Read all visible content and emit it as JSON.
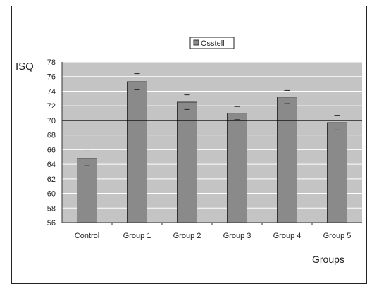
{
  "chart_data": {
    "type": "bar",
    "title": "",
    "xlabel": "Groups",
    "ylabel": "ISQ",
    "ylim": [
      56,
      78
    ],
    "ytick_step": 2,
    "yticks": [
      "56",
      "58",
      "60",
      "62",
      "64",
      "66",
      "68",
      "70",
      "72",
      "74",
      "76",
      "78"
    ],
    "reference_line": 70,
    "legend": {
      "position": "top-center"
    },
    "categories": [
      "Control",
      "Group 1",
      "Group 2",
      "Group 3",
      "Group 4",
      "Group 5"
    ],
    "series": [
      {
        "name": "Osstell",
        "values": [
          64.8,
          75.3,
          72.5,
          71.0,
          73.2,
          69.7
        ],
        "error": [
          1.0,
          1.1,
          1.0,
          0.9,
          0.9,
          1.0
        ]
      }
    ],
    "grid": true
  },
  "colors": {
    "plot_bg": "#c4c4c4",
    "bar_fill": "#8a8a8a",
    "bar_edge": "#333333",
    "grid": "#ffffff",
    "axis": "#333333",
    "reference_line": "#000000"
  }
}
